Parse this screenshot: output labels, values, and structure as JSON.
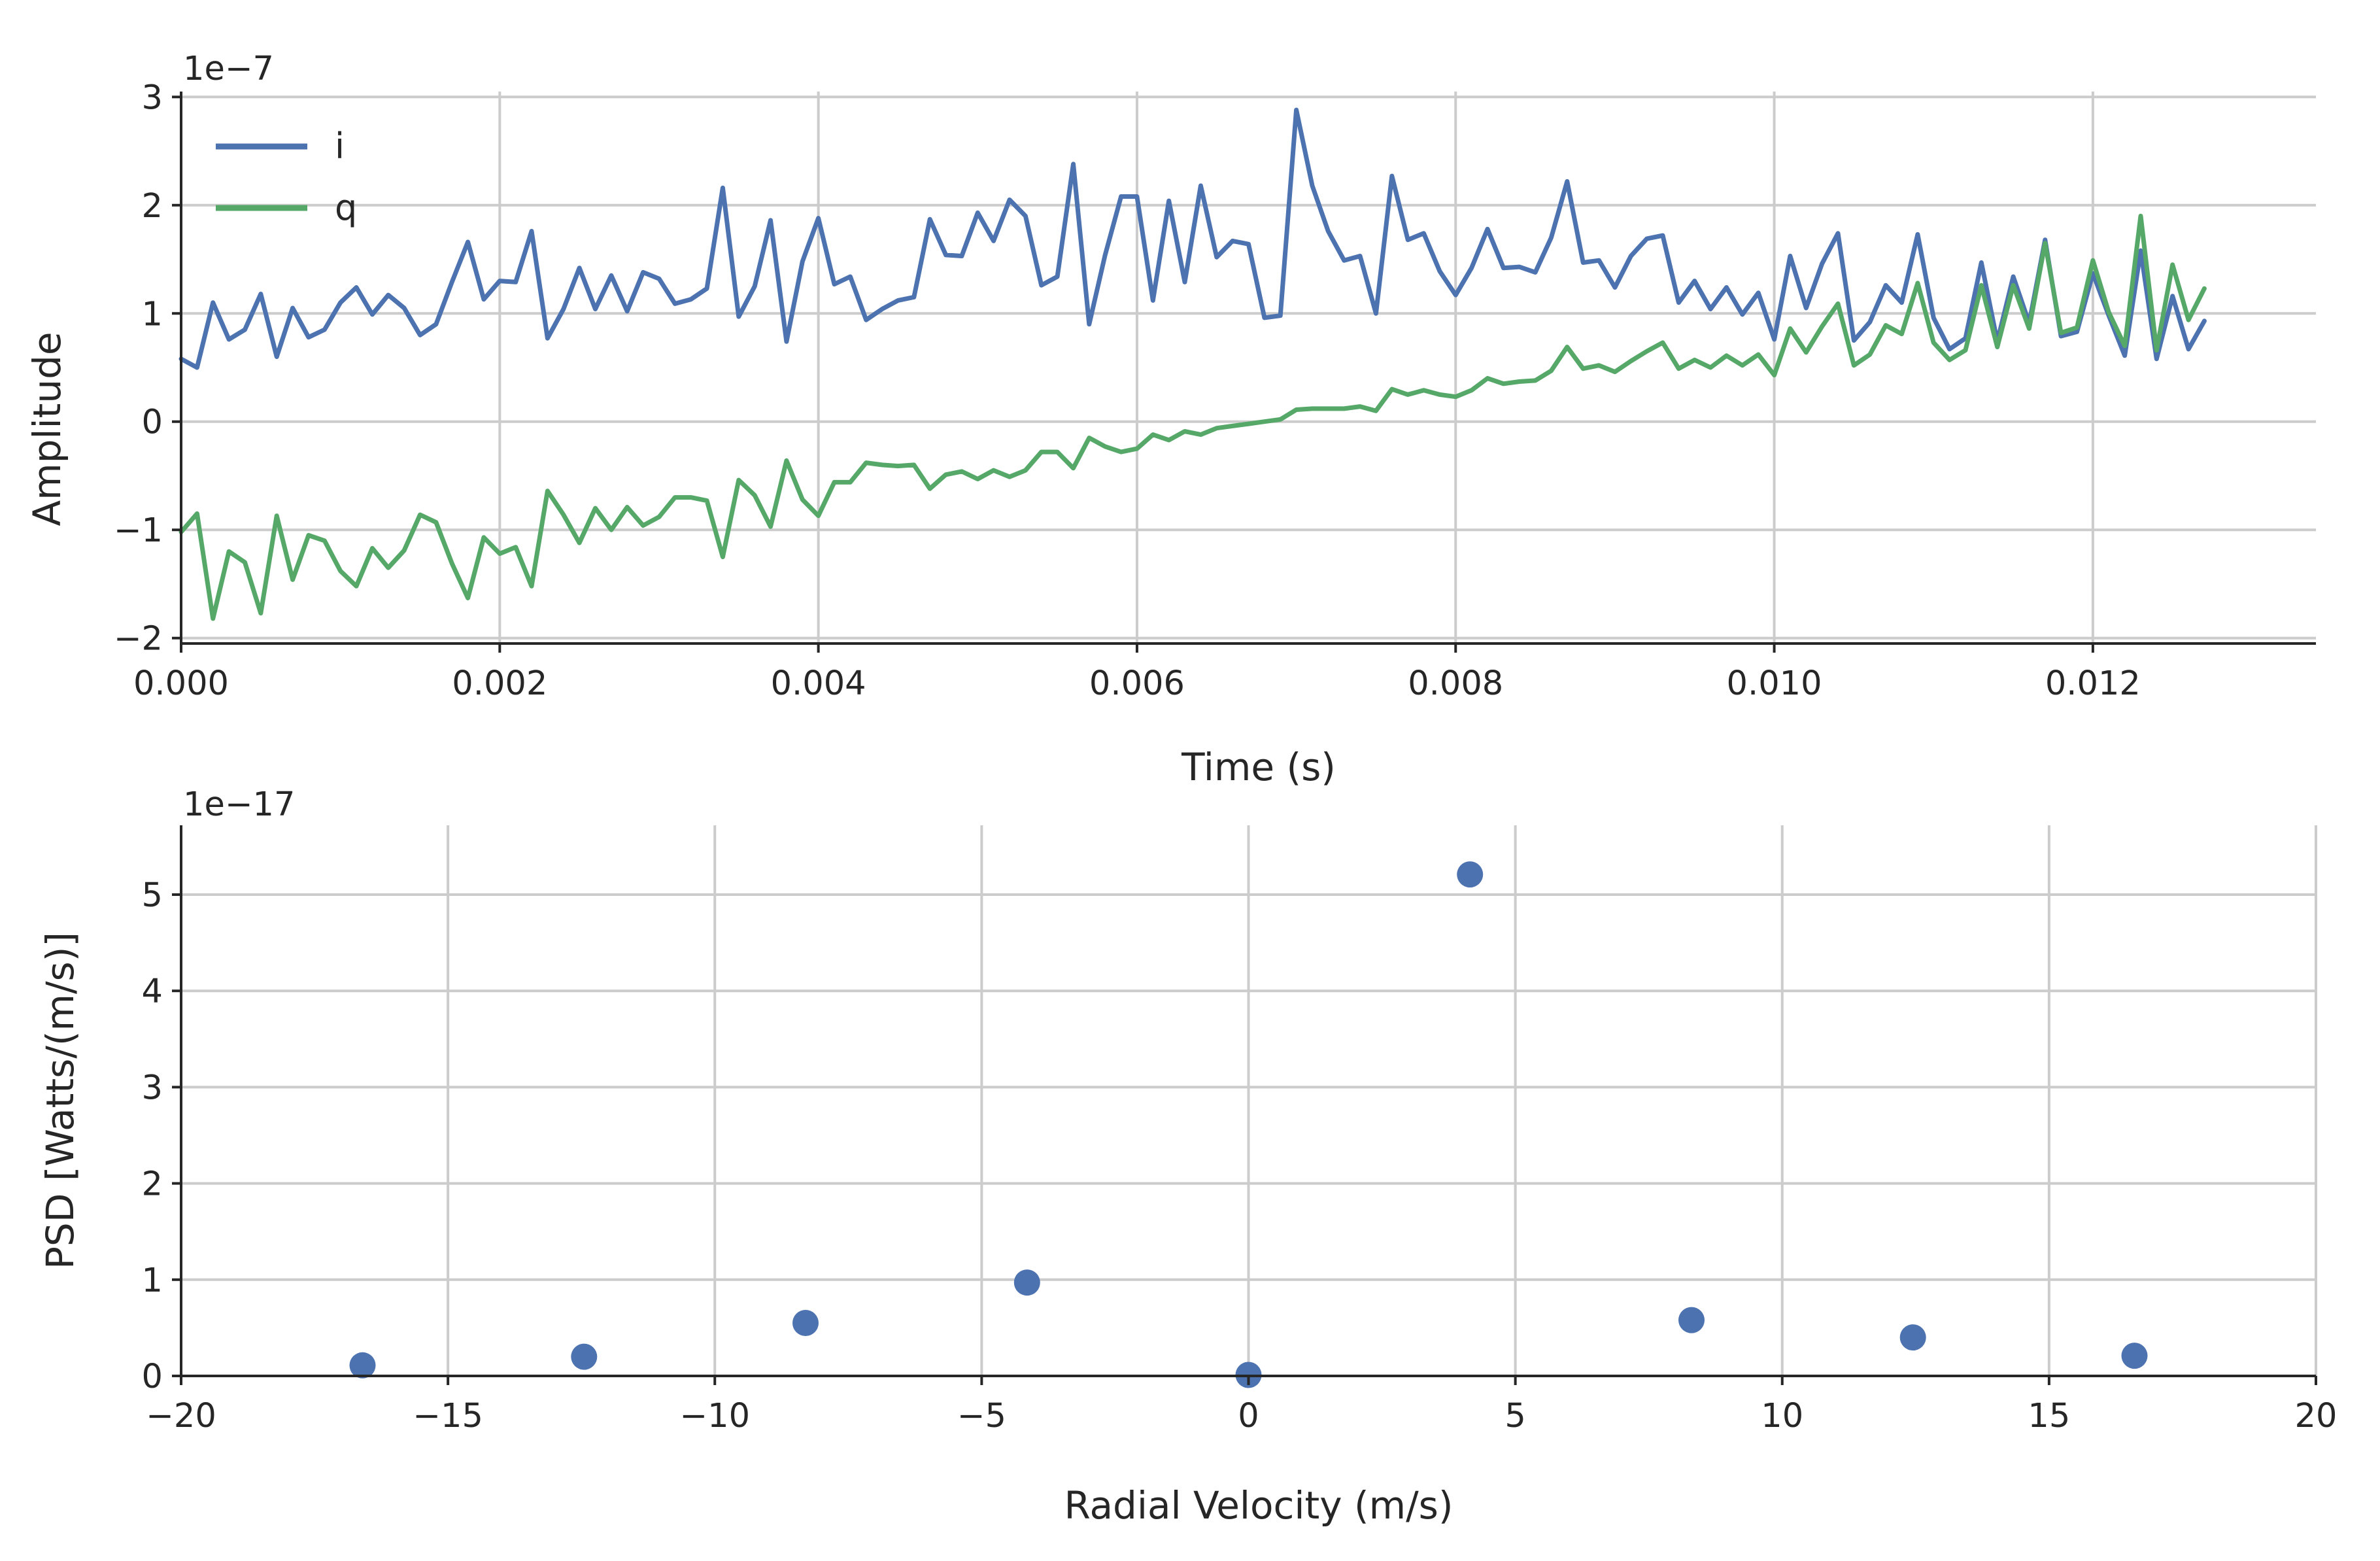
{
  "chart_data": [
    {
      "type": "line",
      "xlabel": "Time (s)",
      "ylabel": "Amplitude",
      "y_offset_label": "1e−7",
      "y_scale": 1e-07,
      "xlim": [
        0,
        0.0134
      ],
      "ylim": [
        -2.05,
        3.05
      ],
      "x_ticks": [
        0.0,
        0.002,
        0.004,
        0.006,
        0.008,
        0.01,
        0.012
      ],
      "x_tick_labels": [
        "0.000",
        "0.002",
        "0.004",
        "0.006",
        "0.008",
        "0.010",
        "0.012"
      ],
      "y_ticks": [
        -2,
        -1,
        0,
        1,
        2,
        3
      ],
      "y_tick_labels": [
        "−2",
        "−1",
        "0",
        "1",
        "2",
        "3"
      ],
      "grid": true,
      "legend_position": "top-left",
      "x_start": 0,
      "x_step": 0.0001,
      "series": [
        {
          "name": "i",
          "color": "#4c72b0",
          "values": [
            0.58,
            0.5,
            1.1,
            0.76,
            0.85,
            1.18,
            0.6,
            1.05,
            0.78,
            0.85,
            1.1,
            1.24,
            0.99,
            1.17,
            1.05,
            0.8,
            0.9,
            1.29,
            1.66,
            1.13,
            1.3,
            1.29,
            1.76,
            0.77,
            1.04,
            1.42,
            1.04,
            1.35,
            1.02,
            1.38,
            1.32,
            1.09,
            1.13,
            1.23,
            2.16,
            0.97,
            1.25,
            1.86,
            0.74,
            1.48,
            1.88,
            1.27,
            1.34,
            0.94,
            1.04,
            1.12,
            1.15,
            1.87,
            1.54,
            1.53,
            1.93,
            1.67,
            2.05,
            1.9,
            1.26,
            1.34,
            2.38,
            0.9,
            1.54,
            2.08,
            2.08,
            1.12,
            2.04,
            1.29,
            2.18,
            1.52,
            1.67,
            1.64,
            0.96,
            0.98,
            2.88,
            2.18,
            1.76,
            1.49,
            1.53,
            1.0,
            2.27,
            1.68,
            1.74,
            1.39,
            1.17,
            1.42,
            1.78,
            1.42,
            1.43,
            1.38,
            1.7,
            2.22,
            1.47,
            1.49,
            1.24,
            1.53,
            1.69,
            1.72,
            1.1,
            1.3,
            1.04,
            1.24,
            0.99,
            1.19,
            0.76,
            1.53,
            1.05,
            1.46,
            1.74,
            0.75,
            0.92,
            1.26,
            1.1,
            1.73,
            0.96,
            0.67,
            0.77,
            1.47,
            0.74,
            1.34,
            0.91,
            1.68,
            0.79,
            0.83,
            1.37,
            0.98,
            0.61,
            1.58,
            0.58,
            1.16,
            0.67,
            0.93
          ]
        },
        {
          "name": "q",
          "color": "#55a868",
          "values": [
            -1.02,
            -0.85,
            -1.82,
            -1.2,
            -1.3,
            -1.77,
            -0.87,
            -1.46,
            -1.05,
            -1.1,
            -1.38,
            -1.52,
            -1.17,
            -1.35,
            -1.19,
            -0.86,
            -0.93,
            -1.31,
            -1.63,
            -1.07,
            -1.22,
            -1.16,
            -1.52,
            -0.64,
            -0.86,
            -1.12,
            -0.8,
            -1.0,
            -0.79,
            -0.96,
            -0.88,
            -0.7,
            -0.7,
            -0.73,
            -1.25,
            -0.54,
            -0.68,
            -0.97,
            -0.36,
            -0.72,
            -0.87,
            -0.56,
            -0.56,
            -0.38,
            -0.4,
            -0.41,
            -0.4,
            -0.62,
            -0.49,
            -0.46,
            -0.53,
            -0.45,
            -0.51,
            -0.45,
            -0.28,
            -0.28,
            -0.43,
            -0.15,
            -0.23,
            -0.28,
            -0.25,
            -0.12,
            -0.17,
            -0.09,
            -0.12,
            -0.06,
            -0.04,
            -0.02,
            0.0,
            0.02,
            0.11,
            0.12,
            0.12,
            0.12,
            0.14,
            0.1,
            0.3,
            0.25,
            0.29,
            0.25,
            0.23,
            0.29,
            0.4,
            0.35,
            0.37,
            0.38,
            0.47,
            0.69,
            0.49,
            0.52,
            0.46,
            0.56,
            0.65,
            0.73,
            0.49,
            0.57,
            0.5,
            0.61,
            0.52,
            0.62,
            0.43,
            0.86,
            0.64,
            0.88,
            1.09,
            0.52,
            0.62,
            0.89,
            0.81,
            1.28,
            0.73,
            0.57,
            0.66,
            1.26,
            0.69,
            1.26,
            0.86,
            1.65,
            0.82,
            0.87,
            1.49,
            1.01,
            0.7,
            1.9,
            0.66,
            1.45,
            0.94,
            1.23
          ]
        }
      ]
    },
    {
      "type": "scatter",
      "xlabel": "Radial Velocity (m/s)",
      "ylabel": "PSD [Watts/(m/s)]",
      "y_offset_label": "1e−17",
      "y_scale": 1e-17,
      "xlim": [
        -20,
        20
      ],
      "ylim": [
        0,
        5.72
      ],
      "x_ticks": [
        -20,
        -15,
        -10,
        -5,
        0,
        5,
        10,
        15,
        20
      ],
      "x_tick_labels": [
        "−20",
        "−15",
        "−10",
        "−5",
        "0",
        "5",
        "10",
        "15",
        "20"
      ],
      "y_ticks": [
        0,
        1,
        2,
        3,
        4,
        5
      ],
      "y_tick_labels": [
        "0",
        "1",
        "2",
        "3",
        "4",
        "5"
      ],
      "grid": true,
      "color": "#4c72b0",
      "points": [
        {
          "x": -16.6,
          "y": 0.11
        },
        {
          "x": -12.45,
          "y": 0.2
        },
        {
          "x": -8.3,
          "y": 0.55
        },
        {
          "x": -4.15,
          "y": 0.97
        },
        {
          "x": 0.0,
          "y": 0.01
        },
        {
          "x": 4.15,
          "y": 5.21
        },
        {
          "x": 8.3,
          "y": 0.58
        },
        {
          "x": 12.45,
          "y": 0.4
        },
        {
          "x": 16.6,
          "y": 0.21
        }
      ]
    }
  ]
}
